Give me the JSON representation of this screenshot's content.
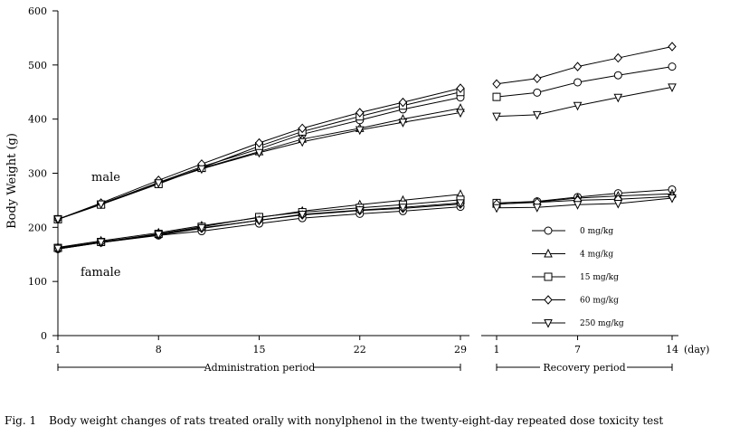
{
  "chart_data": {
    "type": "line",
    "title": "",
    "ylabel": "Body Weight (g)",
    "ylim": [
      0,
      600
    ],
    "yticks": [
      "0",
      "100",
      "200",
      "300",
      "400",
      "500",
      "600"
    ],
    "x_unit_label": "(day)",
    "panels": [
      {
        "name": "Administration period",
        "xlim": [
          1,
          29
        ],
        "xticks": [
          1,
          8,
          15,
          22,
          29
        ],
        "xticklabels": [
          "1",
          "8",
          "15",
          "22",
          "29"
        ]
      },
      {
        "name": "Recovery period",
        "xlim": [
          1,
          14
        ],
        "xticks": [
          1,
          7,
          14
        ],
        "xticklabels": [
          "1",
          "7",
          "14"
        ]
      }
    ],
    "annotations": [
      "male",
      "famale"
    ],
    "legend": [
      "0 mg/kg",
      "4 mg/kg",
      "15 mg/kg",
      "60 mg/kg",
      "250 mg/kg"
    ],
    "series": [
      {
        "name": "0 mg/kg",
        "sex": "male",
        "marker": "circle",
        "admin": {
          "x": [
            1,
            4,
            8,
            11,
            15,
            18,
            22,
            25,
            29
          ],
          "y": [
            215,
            243,
            283,
            312,
            345,
            372,
            398,
            418,
            440
          ]
        },
        "recovery": {
          "x": [
            1,
            4,
            7,
            10,
            14
          ],
          "y": [
            441,
            449,
            468,
            481,
            497
          ]
        }
      },
      {
        "name": "4 mg/kg",
        "sex": "male",
        "marker": "triangle-up",
        "admin": {
          "x": [
            1,
            4,
            8,
            11,
            15,
            18,
            22,
            25,
            29
          ],
          "y": [
            215,
            243,
            282,
            309,
            340,
            363,
            383,
            400,
            420
          ]
        },
        "recovery": null
      },
      {
        "name": "15 mg/kg",
        "sex": "male",
        "marker": "square",
        "admin": {
          "x": [
            1,
            4,
            8,
            11,
            15,
            18,
            22,
            25,
            29
          ],
          "y": [
            215,
            242,
            280,
            310,
            350,
            377,
            405,
            425,
            450
          ]
        },
        "recovery": {
          "x": [
            1
          ],
          "y": [
            441
          ]
        }
      },
      {
        "name": "60 mg/kg",
        "sex": "male",
        "marker": "diamond",
        "admin": {
          "x": [
            1,
            4,
            8,
            11,
            15,
            18,
            22,
            25,
            29
          ],
          "y": [
            215,
            245,
            287,
            317,
            356,
            383,
            412,
            431,
            457
          ]
        },
        "recovery": {
          "x": [
            1,
            4,
            7,
            10,
            14
          ],
          "y": [
            465,
            475,
            497,
            513,
            534
          ]
        }
      },
      {
        "name": "250 mg/kg",
        "sex": "male",
        "marker": "triangle-down",
        "admin": {
          "x": [
            1,
            4,
            8,
            11,
            15,
            18,
            22,
            25,
            29
          ],
          "y": [
            215,
            243,
            282,
            308,
            338,
            358,
            380,
            394,
            412
          ]
        },
        "recovery": {
          "x": [
            1,
            4,
            7,
            10,
            14
          ],
          "y": [
            405,
            408,
            425,
            440,
            459
          ]
        }
      },
      {
        "name": "0 mg/kg",
        "sex": "female",
        "marker": "circle",
        "admin": {
          "x": [
            1,
            4,
            8,
            11,
            15,
            18,
            22,
            25,
            29
          ],
          "y": [
            160,
            172,
            185,
            193,
            207,
            217,
            225,
            230,
            238
          ]
        },
        "recovery": {
          "x": [
            1,
            4,
            7,
            10,
            14
          ],
          "y": [
            245,
            248,
            256,
            263,
            270
          ]
        }
      },
      {
        "name": "4 mg/kg",
        "sex": "female",
        "marker": "triangle-up",
        "admin": {
          "x": [
            1,
            4,
            8,
            11,
            15,
            18,
            22,
            25,
            29
          ],
          "y": [
            163,
            175,
            190,
            203,
            218,
            230,
            242,
            250,
            261
          ]
        },
        "recovery": {
          "x": [
            1,
            4,
            7,
            10,
            14
          ],
          "y": [
            243,
            247,
            254,
            258,
            262
          ]
        }
      },
      {
        "name": "15 mg/kg",
        "sex": "female",
        "marker": "square",
        "admin": {
          "x": [
            1,
            4,
            8,
            11,
            15,
            18,
            22,
            25,
            29
          ],
          "y": [
            162,
            173,
            188,
            201,
            219,
            228,
            236,
            242,
            251
          ]
        },
        "recovery": {
          "x": [
            1
          ],
          "y": [
            245
          ]
        }
      },
      {
        "name": "60 mg/kg",
        "sex": "female",
        "marker": "diamond",
        "admin": {
          "x": [
            1,
            4,
            8,
            11,
            15,
            18,
            22,
            25,
            29
          ],
          "y": [
            160,
            172,
            186,
            198,
            213,
            223,
            231,
            235,
            243
          ]
        },
        "recovery": {
          "x": [
            1,
            4,
            7,
            10,
            14
          ],
          "y": [
            243,
            246,
            250,
            252,
            257
          ]
        }
      },
      {
        "name": "250 mg/kg",
        "sex": "female",
        "marker": "triangle-down",
        "admin": {
          "x": [
            1,
            4,
            8,
            11,
            15,
            18,
            22,
            25,
            29
          ],
          "y": [
            161,
            173,
            187,
            199,
            213,
            224,
            232,
            237,
            245
          ]
        },
        "recovery": {
          "x": [
            1,
            4,
            7,
            10,
            14
          ],
          "y": [
            236,
            237,
            242,
            244,
            254
          ]
        }
      }
    ]
  },
  "caption": {
    "label": "Fig. 1",
    "text": "Body weight changes of rats treated orally with nonylphenol in the twenty-eight-day repeated dose toxicity test"
  }
}
